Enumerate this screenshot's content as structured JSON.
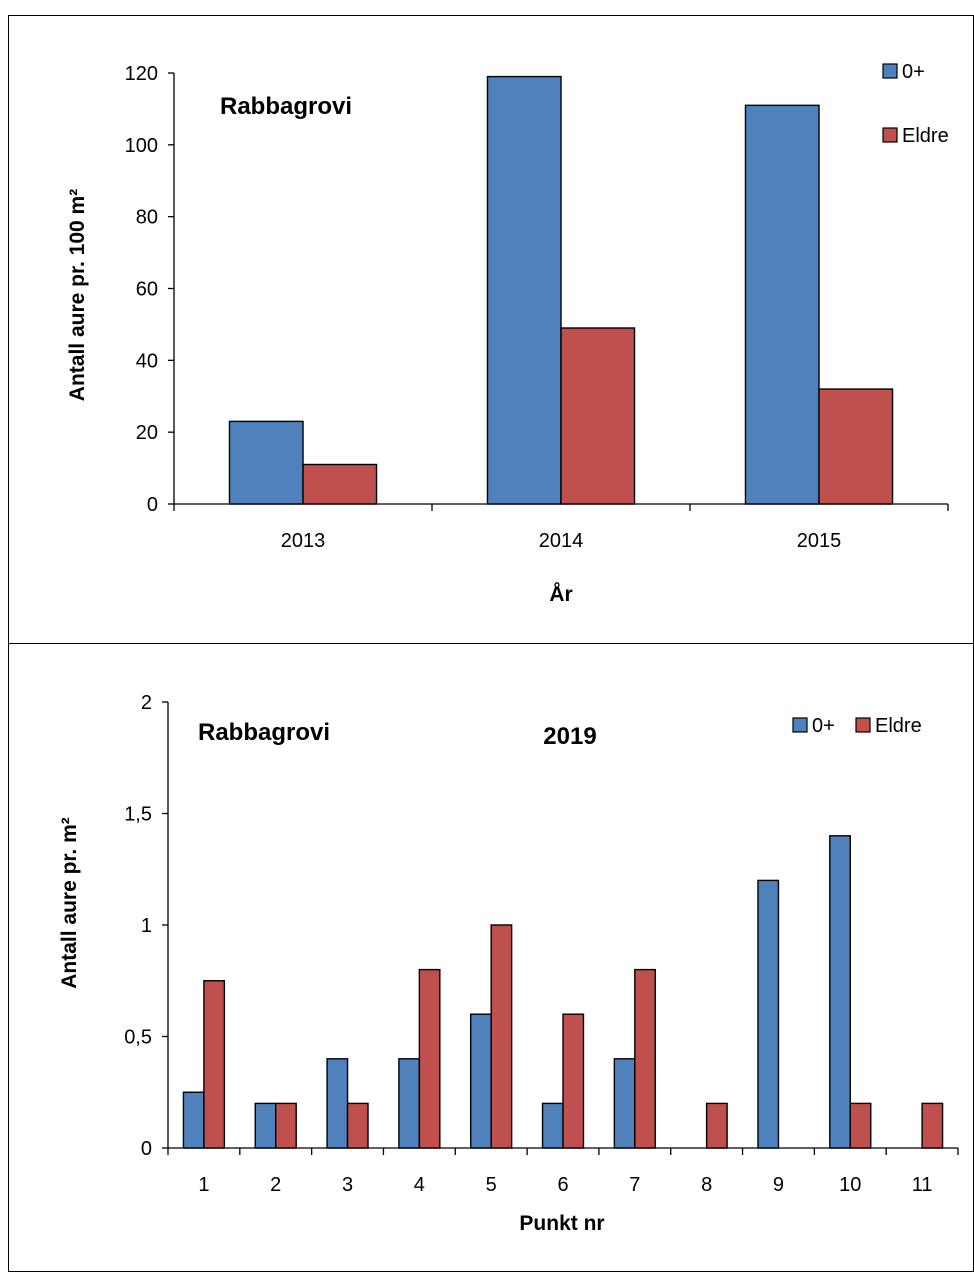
{
  "chart_data": [
    {
      "type": "bar",
      "title": "Rabbagrovi",
      "subtitle": "",
      "xlabel": "År",
      "ylabel": "Antall aure pr. 100 m²",
      "categories": [
        "2013",
        "2014",
        "2015"
      ],
      "series": [
        {
          "name": "0+",
          "values": [
            23,
            119,
            111
          ]
        },
        {
          "name": "Eldre",
          "values": [
            11,
            49,
            32
          ]
        }
      ],
      "ylim": [
        0,
        120
      ],
      "yticks": [
        "0",
        "20",
        "40",
        "60",
        "80",
        "100",
        "120"
      ],
      "grid": false,
      "legend_position": "top-right",
      "colors": {
        "0+": "#4f81bd",
        "Eldre": "#c0504d"
      }
    },
    {
      "type": "bar",
      "title": "Rabbagrovi",
      "subtitle": "2019",
      "xlabel": "Punkt nr",
      "ylabel": "Antall aure pr. m²",
      "categories": [
        "1",
        "2",
        "3",
        "4",
        "5",
        "6",
        "7",
        "8",
        "9",
        "10",
        "11"
      ],
      "series": [
        {
          "name": "0+",
          "values": [
            0.25,
            0.2,
            0.4,
            0.4,
            0.6,
            0.2,
            0.4,
            0,
            1.2,
            1.4,
            0
          ]
        },
        {
          "name": "Eldre",
          "values": [
            0.75,
            0.2,
            0.2,
            0.8,
            1.0,
            0.6,
            0.8,
            0.2,
            0,
            0.2,
            0.2
          ]
        }
      ],
      "ylim": [
        0,
        2
      ],
      "yticks": [
        "0",
        "0,5",
        "1",
        "1,5",
        "2"
      ],
      "grid": false,
      "legend_position": "top-right",
      "colors": {
        "0+": "#4f81bd",
        "Eldre": "#c0504d"
      }
    }
  ]
}
